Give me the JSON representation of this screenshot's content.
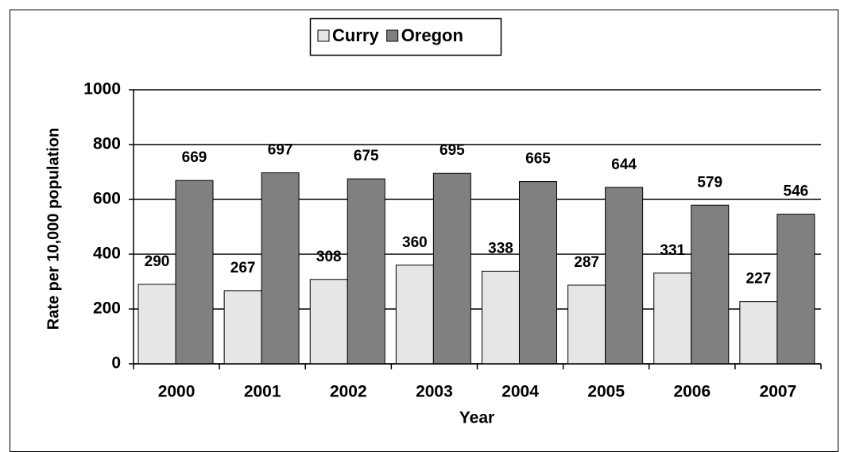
{
  "chart_data": {
    "type": "bar",
    "x_label": "Year",
    "y_label": "Rate per 10,000 population",
    "categories": [
      "2000",
      "2001",
      "2002",
      "2003",
      "2004",
      "2005",
      "2006",
      "2007"
    ],
    "series": [
      {
        "name": "Curry",
        "color": "#e6e6e6",
        "values": [
          290,
          267,
          308,
          360,
          338,
          287,
          331,
          227
        ]
      },
      {
        "name": "Oregon",
        "color": "#808080",
        "values": [
          669,
          697,
          675,
          695,
          665,
          644,
          579,
          546
        ]
      }
    ],
    "ylim": [
      0,
      1000
    ],
    "yticks": [
      0,
      200,
      400,
      600,
      800,
      1000
    ],
    "grid": true,
    "legend": "top"
  }
}
